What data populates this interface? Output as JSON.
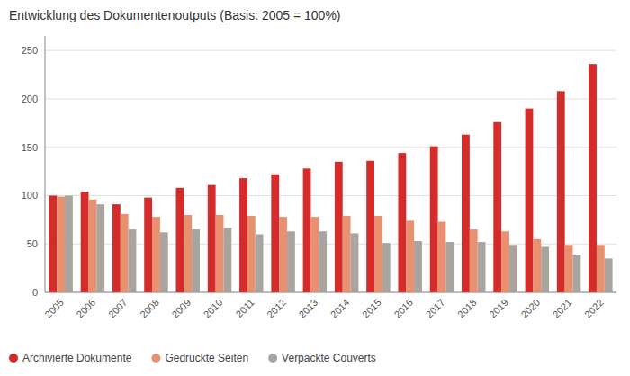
{
  "chart_data": {
    "type": "bar",
    "title": "Entwicklung des Dokumentenoutputs (Basis: 2005 = 100%)",
    "categories": [
      "2005",
      "2006",
      "2007",
      "2008",
      "2009",
      "2010",
      "2011",
      "2012",
      "2013",
      "2014",
      "2015",
      "2016",
      "2017",
      "2018",
      "2019",
      "2020",
      "2021",
      "2022"
    ],
    "series": [
      {
        "name": "Archivierte Dokumente",
        "color": "#d42b2b",
        "values": [
          100,
          104,
          91,
          98,
          108,
          111,
          118,
          122,
          128,
          135,
          136,
          144,
          151,
          163,
          176,
          190,
          208,
          236
        ]
      },
      {
        "name": "Gedruckte Seiten",
        "color": "#e89070",
        "values": [
          99,
          96,
          81,
          78,
          80,
          80,
          79,
          78,
          78,
          79,
          79,
          74,
          73,
          65,
          63,
          55,
          49,
          49
        ]
      },
      {
        "name": "Verpackte Couverts",
        "color": "#aaa49e",
        "values": [
          100,
          91,
          65,
          62,
          65,
          67,
          60,
          63,
          63,
          61,
          51,
          53,
          52,
          52,
          49,
          47,
          39,
          35
        ]
      }
    ],
    "ylim": [
      0,
      265
    ],
    "yticks": [
      0,
      50,
      100,
      150,
      200,
      250
    ],
    "grid": true,
    "legend": "bottom"
  }
}
